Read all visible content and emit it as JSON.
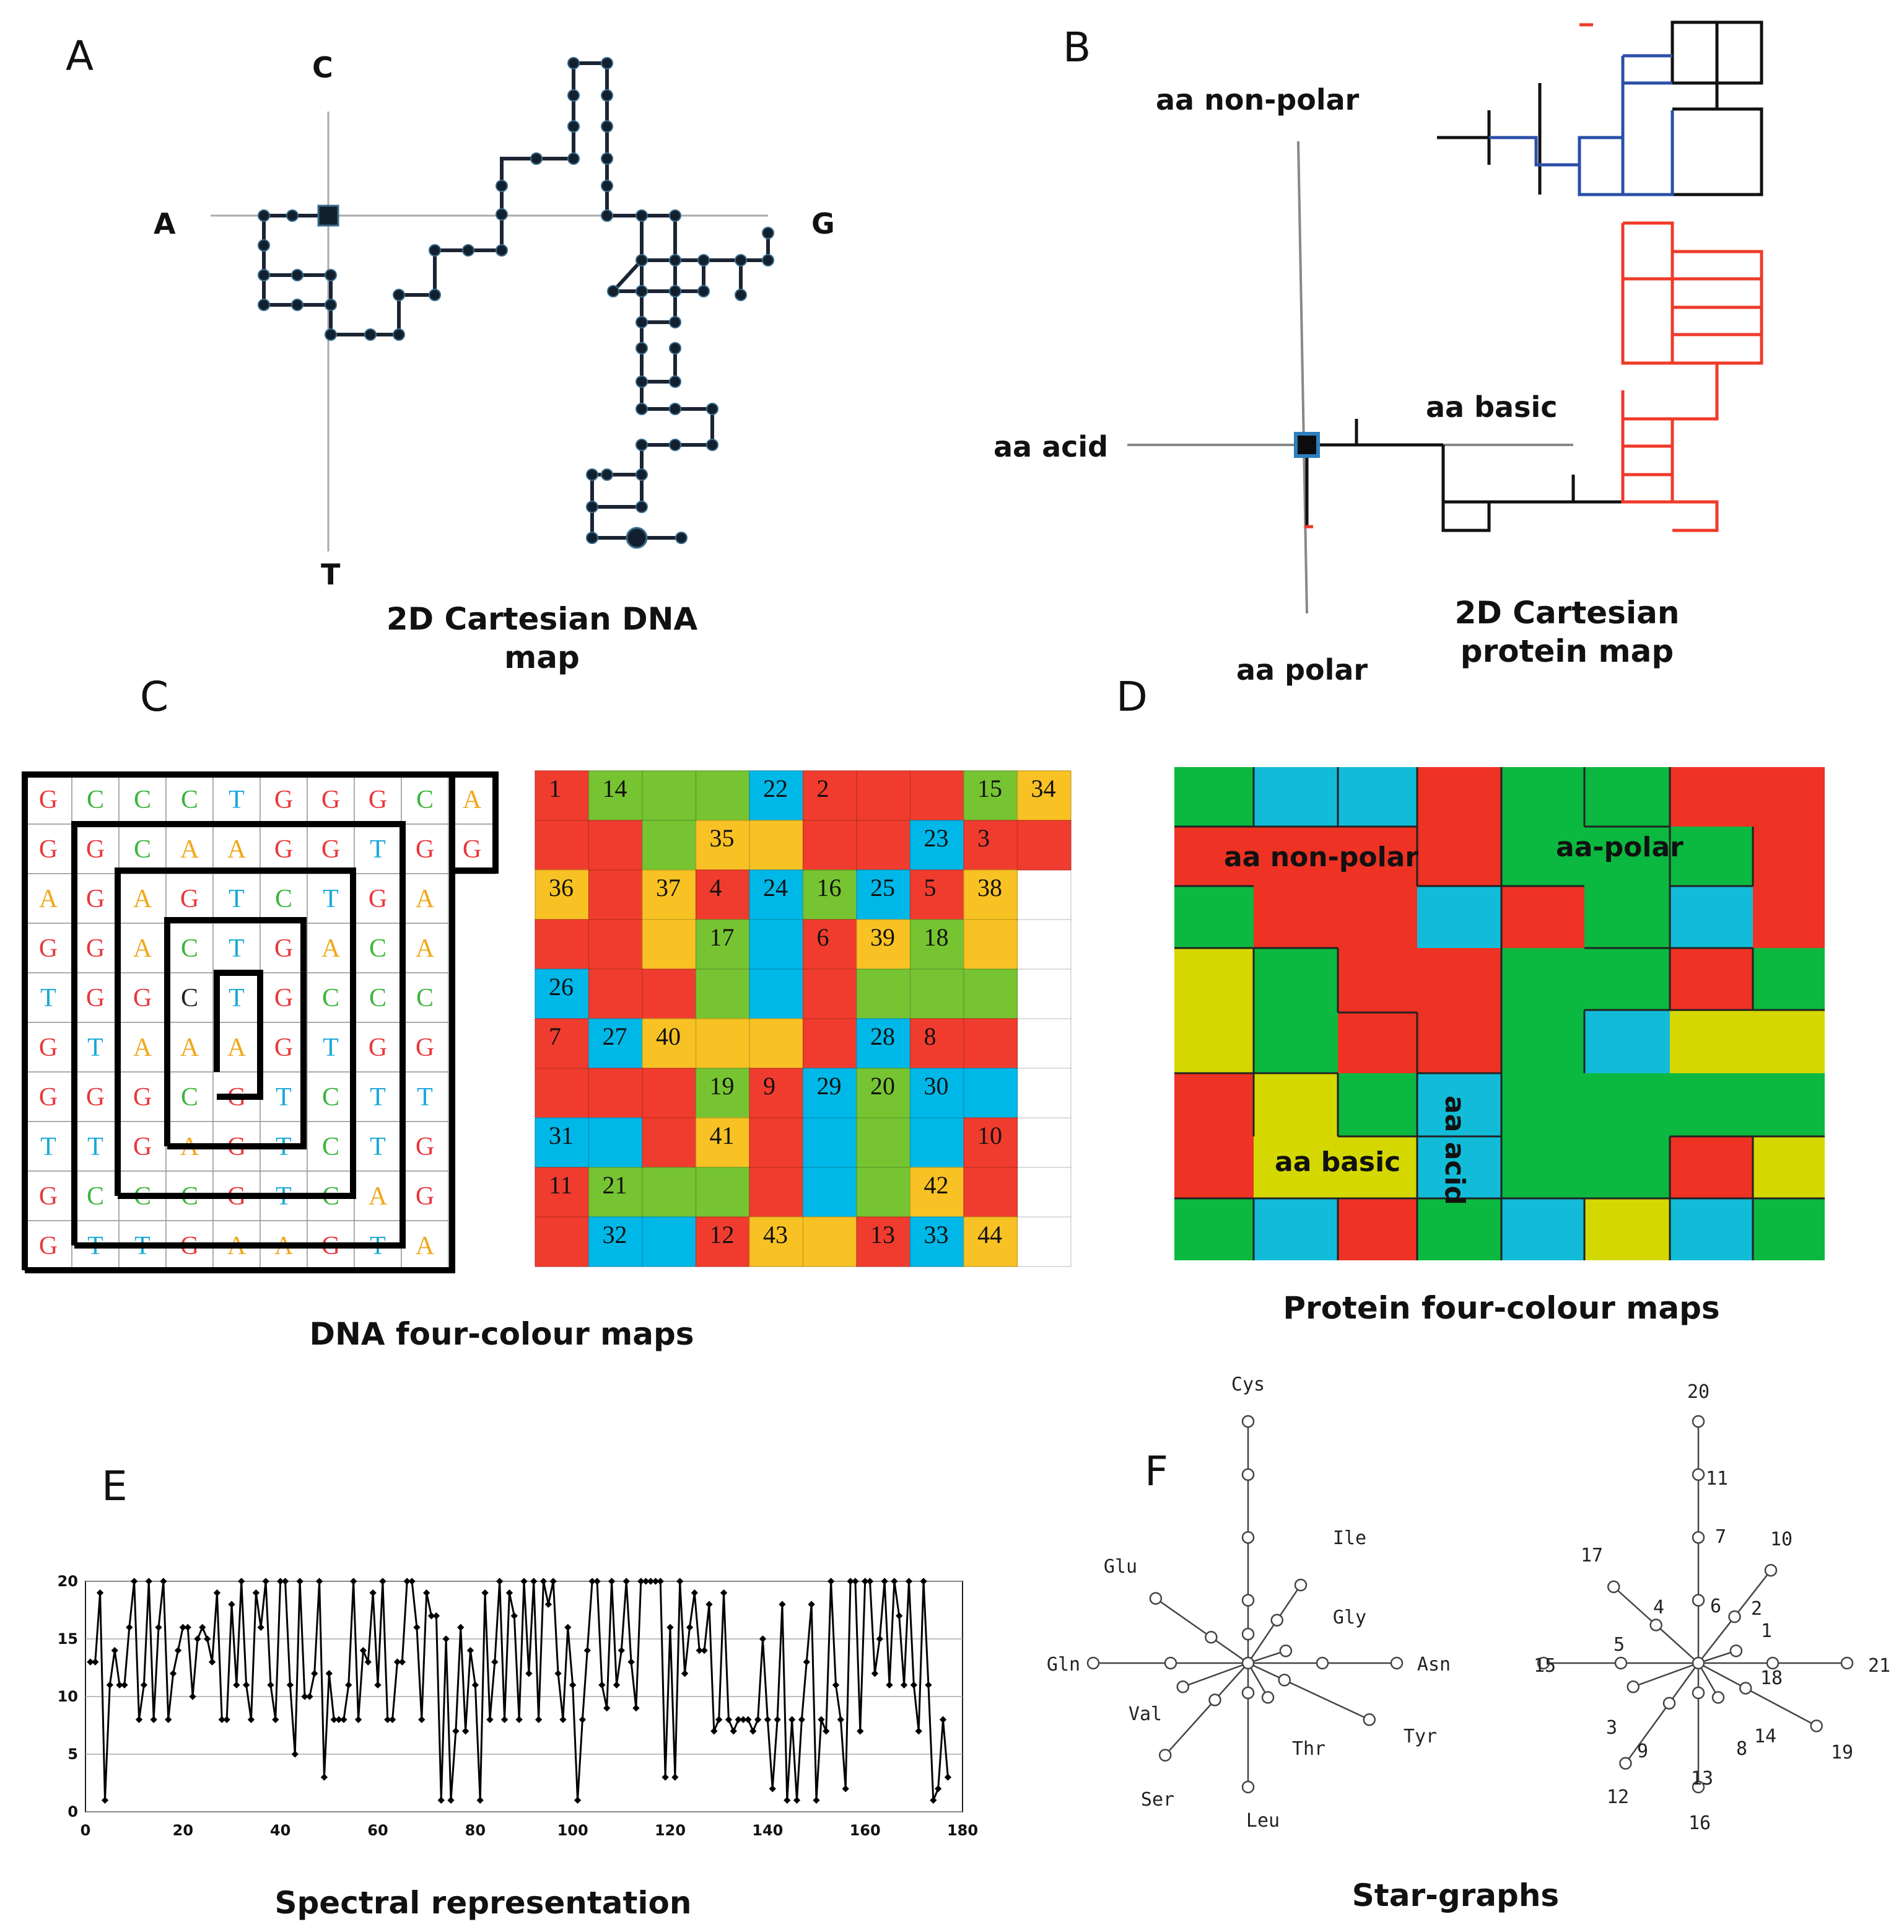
{
  "panels": {
    "A": {
      "letter": "A",
      "axis_top": "C",
      "axis_left": "A",
      "axis_right": "G",
      "axis_bottom": "T",
      "caption_line1": "2D Cartesian DNA",
      "caption_line2": "map"
    },
    "B": {
      "letter": "B",
      "axis_top": "aa non-polar",
      "axis_left": "aa acid",
      "axis_right": "aa basic",
      "axis_bottom": "aa polar",
      "caption_line1": "2D Cartesian",
      "caption_line2": "protein map"
    },
    "C": {
      "letter": "C",
      "caption": "DNA four-colour maps",
      "grid": [
        "GCCCTGGGCA",
        "GGCAAGGTGG",
        "AGAGTCTGA",
        "GGACTGACA",
        "TGGCTGCCC",
        "GTAAAGTGG",
        "GGGCGTCTT",
        "TTGAGTCTG",
        "GCCCGTCAG",
        "GTTGAAGTA"
      ],
      "region_numbers": [
        "1",
        "2",
        "3",
        "4",
        "5",
        "6",
        "7",
        "8",
        "9",
        "10",
        "11",
        "12",
        "13",
        "14",
        "15",
        "16",
        "17",
        "18",
        "19",
        "20",
        "21",
        "22",
        "23",
        "24",
        "25",
        "26",
        "27",
        "28",
        "29",
        "30",
        "31",
        "32",
        "33",
        "34",
        "35",
        "36",
        "37",
        "38",
        "39",
        "40",
        "41",
        "42",
        "43",
        "44"
      ]
    },
    "D": {
      "letter": "D",
      "caption": "Protein four-colour maps",
      "label_nonpolar": "aa non-polar",
      "label_polar": "aa-polar",
      "label_basic": "aa basic",
      "label_acid": "aa acid"
    },
    "E": {
      "letter": "E",
      "caption": "Spectral representation"
    },
    "F": {
      "letter": "F",
      "caption": "Star-graphs",
      "star1_labels": {
        "top": "Cys",
        "upper_right": "Ile",
        "right_upper": "Gly",
        "right": "Asn",
        "lower_right": "Tyr",
        "right_lower": "Thr",
        "bottom": "Leu",
        "lower_left": "Ser",
        "left_lower": "Val",
        "left": "Gln",
        "upper_left": "Glu"
      },
      "star2_labels": [
        "20",
        "11",
        "7",
        "6",
        "10",
        "2",
        "1",
        "18",
        "21",
        "14",
        "19",
        "8",
        "16",
        "13",
        "12",
        "9",
        "3",
        "15",
        "5",
        "4",
        "17"
      ]
    }
  },
  "colors": {
    "dna_G": "#e8383b",
    "dna_C": "#3cb53c",
    "dna_T": "#1aa9d8",
    "dna_A": "#f0a81c",
    "red": "#f03c2e",
    "green": "#76c432",
    "cyan": "#00b8e8",
    "yellow": "#f8c224",
    "prot_red": "#ee3224",
    "prot_green": "#0bb940",
    "prot_cyan": "#12bcd8",
    "prot_yellow": "#d4d800",
    "b_blue": "#2a4fa8",
    "b_red": "#f03a2a"
  },
  "chart_data": {
    "type": "line",
    "title": "Spectral representation",
    "xlabel": "",
    "ylabel": "",
    "xlim": [
      0,
      180
    ],
    "ylim": [
      0,
      20
    ],
    "xticks": [
      "0",
      "20",
      "40",
      "60",
      "80",
      "100",
      "120",
      "140",
      "160",
      "180"
    ],
    "yticks": [
      "0",
      "5",
      "10",
      "15",
      "20"
    ],
    "values": [
      13,
      13,
      19,
      1,
      11,
      14,
      11,
      11,
      16,
      20,
      8,
      11,
      20,
      8,
      16,
      20,
      8,
      12,
      14,
      16,
      16,
      10,
      15,
      16,
      15,
      13,
      19,
      8,
      8,
      18,
      11,
      20,
      11,
      8,
      19,
      16,
      20,
      11,
      8,
      20,
      20,
      11,
      5,
      20,
      10,
      10,
      12,
      20,
      3,
      12,
      8,
      8,
      8,
      11,
      20,
      8,
      14,
      13,
      19,
      11,
      20,
      8,
      8,
      13,
      13,
      20,
      20,
      16,
      8,
      19,
      17,
      17,
      1,
      15,
      1,
      7,
      16,
      7,
      14,
      11,
      1,
      19,
      8,
      13,
      20,
      8,
      19,
      17,
      8,
      20,
      12,
      20,
      8,
      20,
      18,
      20,
      12,
      8,
      16,
      11,
      1,
      8,
      14,
      20,
      20,
      11,
      9,
      20,
      11,
      14,
      20,
      13,
      9,
      20,
      20,
      20,
      20,
      20,
      3,
      16,
      3,
      20,
      12,
      16,
      19,
      14,
      14,
      18,
      7,
      8,
      19,
      8,
      7,
      8,
      8,
      8,
      7,
      8,
      15,
      8,
      2,
      8,
      18,
      1,
      8,
      1,
      8,
      13,
      18,
      1,
      8,
      7,
      20,
      11,
      8,
      2,
      20,
      20,
      7,
      20,
      20,
      12,
      15,
      20,
      11,
      20,
      17,
      11,
      20,
      11,
      7,
      20,
      11,
      1,
      2,
      8,
      3
    ]
  }
}
